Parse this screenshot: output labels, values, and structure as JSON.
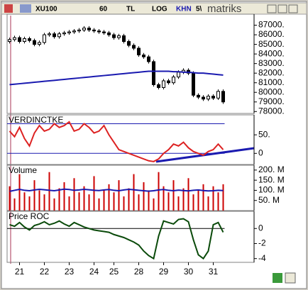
{
  "toolbar": {
    "items": [
      "XU100",
      "60",
      "TL",
      "LOG",
      "KHN",
      "5\\"
    ],
    "logo": "matriks"
  },
  "chart_data": [
    {
      "type": "candlestick",
      "color": "#000000",
      "open": [
        85300,
        85500,
        85700,
        85300,
        85600,
        85400,
        85000,
        85200,
        86000,
        86100,
        85800,
        86100,
        86200,
        86300,
        86400,
        86500,
        86700,
        86500,
        86400,
        86300,
        86200,
        86000,
        85700,
        85900,
        85300,
        84900,
        84600,
        83900,
        83700,
        83200,
        80800,
        80500,
        81200,
        81000,
        81600,
        82100,
        82300,
        82000,
        79700,
        79500,
        79300,
        79600,
        79400,
        80100
      ],
      "high": [
        85700,
        85900,
        85900,
        85800,
        85800,
        85600,
        85400,
        86200,
        86300,
        86300,
        86300,
        86400,
        86500,
        86600,
        86700,
        86900,
        86900,
        86700,
        86600,
        86500,
        86400,
        86200,
        86100,
        86100,
        85500,
        85100,
        84800,
        84100,
        83900,
        83400,
        81000,
        81400,
        81400,
        81800,
        82300,
        82500,
        82500,
        82200,
        79900,
        79700,
        79800,
        79800,
        80300,
        80300
      ],
      "low": [
        85100,
        85300,
        85100,
        85100,
        85200,
        84800,
        84800,
        85000,
        85800,
        85600,
        85600,
        85900,
        86000,
        86100,
        86200,
        86300,
        86300,
        86200,
        86100,
        86000,
        85800,
        85500,
        85500,
        85100,
        84700,
        84400,
        83700,
        83500,
        83000,
        80600,
        80300,
        80300,
        80800,
        80800,
        81400,
        81900,
        81800,
        79500,
        79300,
        79100,
        79100,
        79200,
        79200,
        78800
      ],
      "close": [
        85500,
        85700,
        85300,
        85600,
        85400,
        85000,
        85200,
        86000,
        86100,
        85800,
        86100,
        86200,
        86300,
        86400,
        86500,
        86700,
        86500,
        86400,
        86300,
        86200,
        86000,
        85700,
        85900,
        85300,
        84900,
        84600,
        83900,
        83700,
        83200,
        80800,
        80500,
        81200,
        81000,
        81600,
        82100,
        82300,
        82000,
        79700,
        79500,
        79300,
        79600,
        79400,
        80100,
        79000
      ],
      "series": [
        {
          "color": "#1a1ab0",
          "values": [
            80800,
            80850,
            80900,
            80950,
            81000,
            81050,
            81100,
            81150,
            81200,
            81250,
            81300,
            81350,
            81400,
            81450,
            81500,
            81550,
            81600,
            81650,
            81700,
            81750,
            81800,
            81850,
            81900,
            81950,
            82000,
            82050,
            82100,
            82150,
            82200,
            82200,
            82200,
            82200,
            82200,
            82150,
            82150,
            82100,
            82100,
            82050,
            82000,
            82000,
            81950,
            81900,
            81850,
            81800
          ]
        }
      ],
      "ylim": [
        77800,
        88000
      ],
      "yticks": [
        {
          "value": 78000,
          "label": "78000."
        },
        {
          "value": 79000,
          "label": "79000."
        },
        {
          "value": 80000,
          "label": "80000."
        },
        {
          "value": 81000,
          "label": "81000."
        },
        {
          "value": 82000,
          "label": "82000."
        },
        {
          "value": 83000,
          "label": "83000."
        },
        {
          "value": 84000,
          "label": "84000."
        },
        {
          "value": 85000,
          "label": "85000."
        },
        {
          "value": 86000,
          "label": "86000."
        },
        {
          "value": 87000,
          "label": "87000."
        }
      ]
    },
    {
      "type": "line",
      "title": "VERDINCTKE",
      "series": [
        {
          "color": "#dd2222",
          "values": [
            60,
            45,
            70,
            40,
            20,
            55,
            75,
            60,
            65,
            80,
            70,
            75,
            85,
            60,
            65,
            80,
            70,
            55,
            60,
            75,
            50,
            30,
            10,
            5,
            0,
            -5,
            -10,
            -15,
            -20,
            -22,
            -15,
            0,
            10,
            25,
            20,
            30,
            15,
            5,
            0,
            -5,
            5,
            10,
            25,
            10
          ]
        }
      ],
      "levels": [
        80,
        0
      ],
      "levels_color": "#1a1ab0",
      "ylim": [
        -30,
        100
      ],
      "yticks": [
        0,
        {
          "value": 50,
          "label": "50."
        }
      ]
    },
    {
      "type": "bar",
      "title": "Volume",
      "color": "#cc0000",
      "values": [
        120,
        60,
        180,
        90,
        70,
        150,
        100,
        80,
        190,
        60,
        110,
        140,
        70,
        160,
        90,
        120,
        80,
        170,
        60,
        100,
        130,
        90,
        150,
        70,
        110,
        180,
        80,
        140,
        100,
        60,
        190,
        120,
        90,
        150,
        70,
        110,
        160,
        80,
        100,
        130,
        70,
        120,
        90,
        130
      ],
      "series": [
        {
          "color": "#1a1ab0",
          "values": [
            95,
            100,
            105,
            100,
            98,
            102,
            105,
            103,
            100,
            98,
            102,
            106,
            104,
            100,
            102,
            105,
            103,
            100,
            99,
            102,
            104,
            100,
            98,
            102,
            105,
            103,
            100,
            98,
            96,
            98,
            102,
            104,
            100,
            98,
            101,
            99,
            97,
            100,
            102,
            99,
            97,
            98,
            100,
            99
          ]
        }
      ],
      "ylim": [
        0,
        217
      ],
      "yticks": [
        {
          "value": 50,
          "label": "50. M"
        },
        {
          "value": 100,
          "label": "100. M"
        },
        {
          "value": 150,
          "label": "150. M"
        },
        {
          "value": 200,
          "label": "200. M"
        }
      ]
    },
    {
      "type": "line",
      "title": "Price ROC",
      "series": [
        {
          "color": "#0a4a0a",
          "values": [
            0.5,
            0.3,
            0.8,
            0.2,
            -0.2,
            0.4,
            0.6,
            0.9,
            0.5,
            0.7,
            1.0,
            0.6,
            0.3,
            0.8,
            0.5,
            0.2,
            0,
            -0.2,
            -0.3,
            -0.4,
            -0.5,
            -0.8,
            -1.0,
            -1.2,
            -1.5,
            -1.8,
            -2.2,
            -3.0,
            -3.6,
            -4.0,
            -1.0,
            1.0,
            0.8,
            0.6,
            1.2,
            1.3,
            0.9,
            -1.5,
            -3.5,
            -4.0,
            -3.0,
            0.5,
            0.8,
            -0.5
          ]
        }
      ],
      "levels": [
        0
      ],
      "levels_color": "#000000",
      "ylim": [
        -4.5,
        2.1
      ],
      "yticks": [
        -4,
        -2,
        0
      ],
      "categories": [
        null,
        null,
        "21",
        null,
        null,
        null,
        null,
        "22",
        null,
        null,
        null,
        null,
        "23",
        null,
        null,
        null,
        null,
        "24",
        null,
        null,
        null,
        "25",
        null,
        null,
        null,
        null,
        "28",
        null,
        null,
        null,
        null,
        "29",
        null,
        null,
        null,
        null,
        "30",
        null,
        null,
        null,
        null,
        "31",
        null,
        null
      ]
    }
  ]
}
